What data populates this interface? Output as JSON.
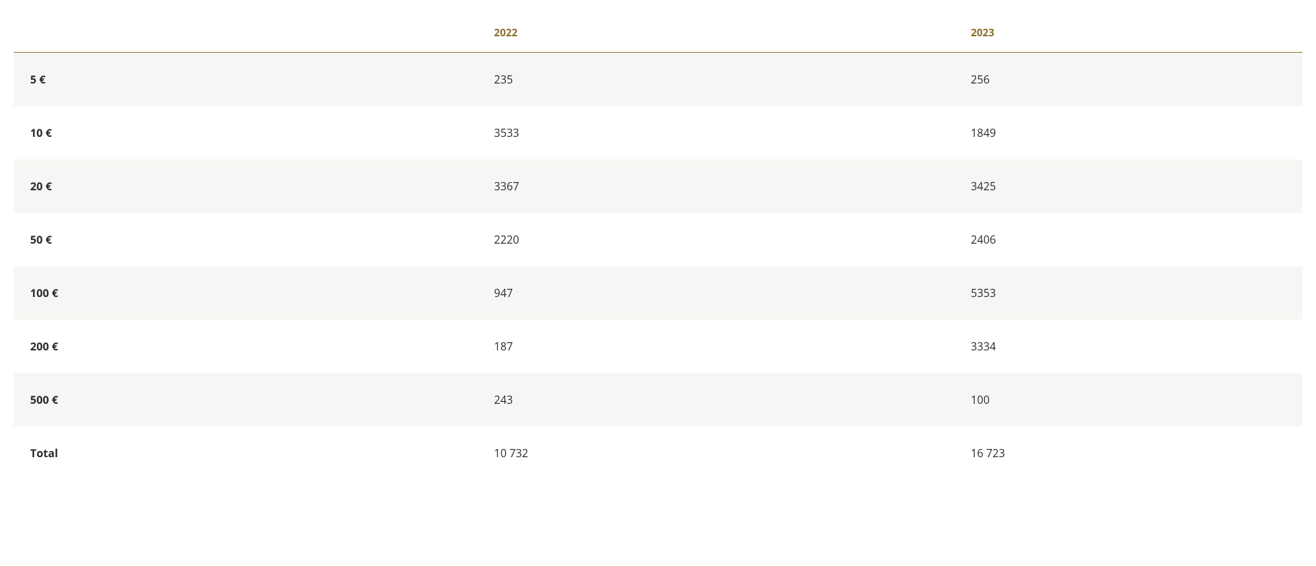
{
  "table": {
    "columns": [
      "",
      "2022",
      "2023"
    ],
    "rows": [
      {
        "label": "5 €",
        "y2022": "235",
        "y2023": "256"
      },
      {
        "label": "10 €",
        "y2022": "3533",
        "y2023": "1849"
      },
      {
        "label": "20 €",
        "y2022": "3367",
        "y2023": "3425"
      },
      {
        "label": "50 €",
        "y2022": "2220",
        "y2023": "2406"
      },
      {
        "label": "100 €",
        "y2022": "947",
        "y2023": "5353"
      },
      {
        "label": "200 €",
        "y2022": "187",
        "y2023": "3334"
      },
      {
        "label": "500 €",
        "y2022": "243",
        "y2023": "100"
      },
      {
        "label": "Total",
        "y2022": "10 732",
        "y2023": "16 723"
      }
    ],
    "styling": {
      "header_color": "#8b6f2e",
      "header_border_color": "#8b6f2e",
      "text_color": "#2b2b2b",
      "row_odd_bg": "#f6f6f4",
      "row_even_bg": "#ffffff",
      "header_fontsize": 15,
      "header_fontweight": 700,
      "cell_fontsize": 16,
      "first_col_fontweight": 700,
      "row_padding_v": 28,
      "row_padding_h": 24,
      "column_widths_pct": [
        36,
        37,
        27
      ]
    }
  }
}
